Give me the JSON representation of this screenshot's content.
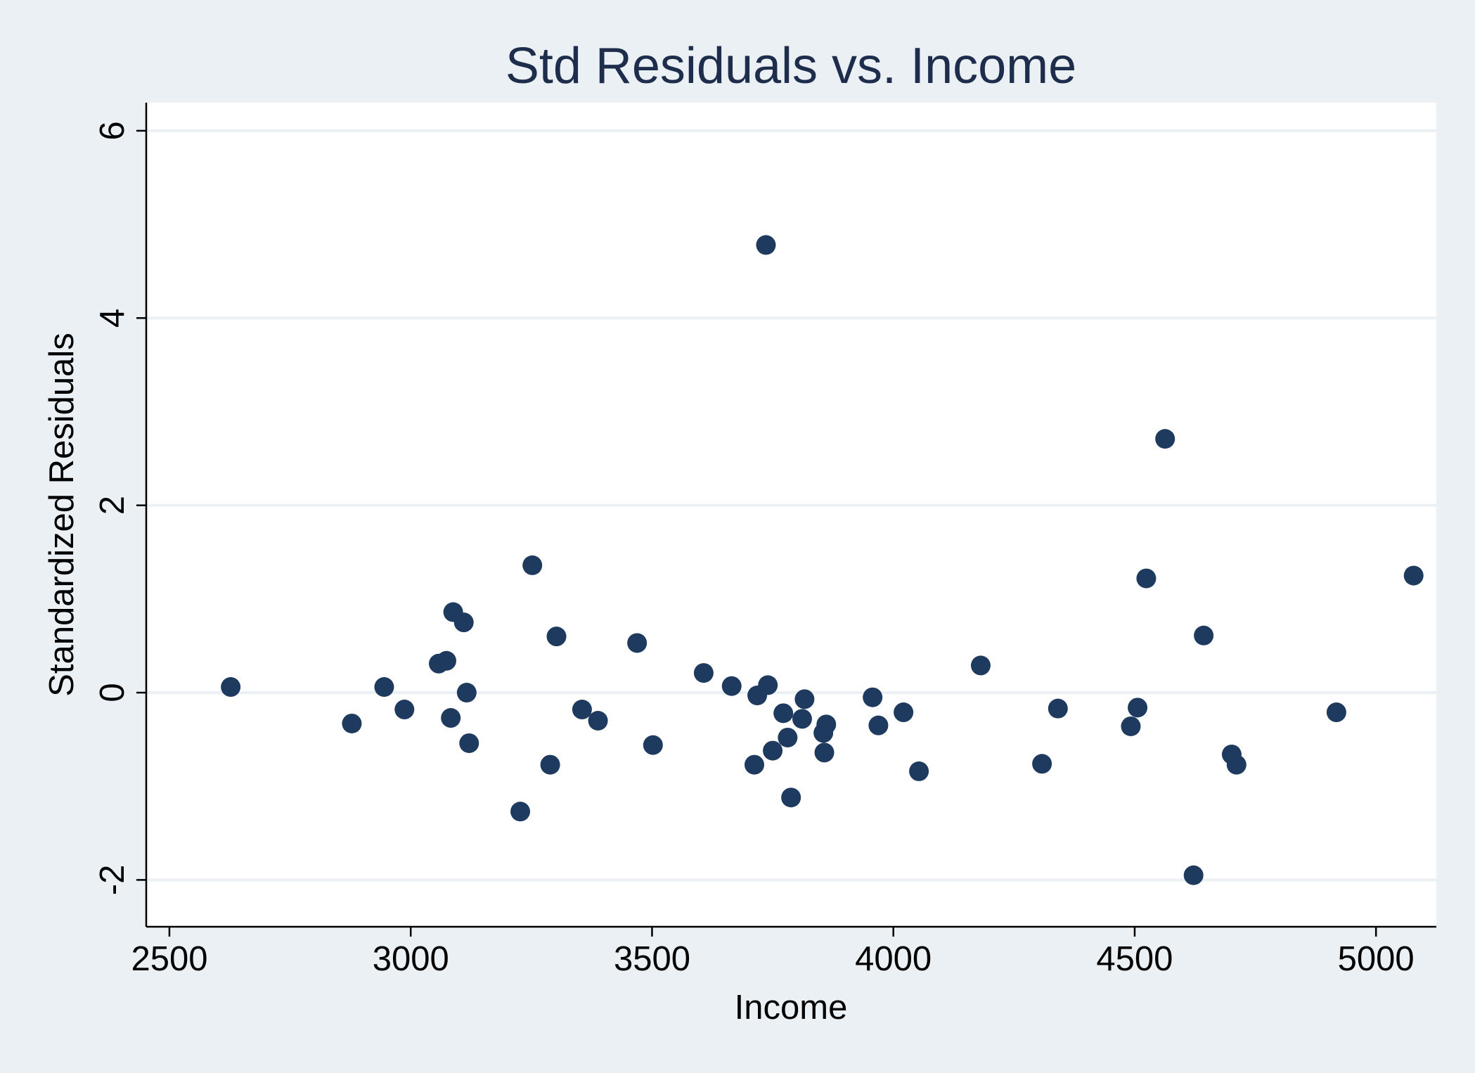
{
  "chart_data": {
    "type": "scatter",
    "title": "Std Residuals vs. Income",
    "xlabel": "Income",
    "ylabel": "Standardized Residuals",
    "xlim": [
      2452,
      5125
    ],
    "ylim": [
      -2.5,
      6.3
    ],
    "xticks": [
      2500,
      3000,
      3500,
      4000,
      4500,
      5000
    ],
    "yticks": [
      -2,
      0,
      2,
      4,
      6
    ],
    "xtick_labels": [
      "2500",
      "3000",
      "3500",
      "4000",
      "4500",
      "5000"
    ],
    "ytick_labels": [
      "-2",
      "0",
      "2",
      "4",
      "6"
    ],
    "grid": "horizontal",
    "legend": "none",
    "marker_color": "#1f3a5f",
    "background": "#eaf0f3",
    "plot_background": "#ffffff",
    "points": [
      {
        "x": 2627,
        "y": 0.06
      },
      {
        "x": 2878,
        "y": -0.33
      },
      {
        "x": 2945,
        "y": 0.06
      },
      {
        "x": 2987,
        "y": -0.18
      },
      {
        "x": 3058,
        "y": 0.31
      },
      {
        "x": 3074,
        "y": 0.34
      },
      {
        "x": 3083,
        "y": -0.27
      },
      {
        "x": 3088,
        "y": 0.86
      },
      {
        "x": 3110,
        "y": 0.75
      },
      {
        "x": 3116,
        "y": 0.0
      },
      {
        "x": 3121,
        "y": -0.54
      },
      {
        "x": 3227,
        "y": -1.27
      },
      {
        "x": 3252,
        "y": 1.36
      },
      {
        "x": 3289,
        "y": -0.77
      },
      {
        "x": 3302,
        "y": 0.6
      },
      {
        "x": 3355,
        "y": -0.18
      },
      {
        "x": 3388,
        "y": -0.3
      },
      {
        "x": 3469,
        "y": 0.53
      },
      {
        "x": 3502,
        "y": -0.56
      },
      {
        "x": 3607,
        "y": 0.21
      },
      {
        "x": 3665,
        "y": 0.07
      },
      {
        "x": 3712,
        "y": -0.77
      },
      {
        "x": 3718,
        "y": -0.03
      },
      {
        "x": 3736,
        "y": 4.78
      },
      {
        "x": 3740,
        "y": 0.08
      },
      {
        "x": 3750,
        "y": -0.62
      },
      {
        "x": 3772,
        "y": -0.22
      },
      {
        "x": 3781,
        "y": -0.48
      },
      {
        "x": 3788,
        "y": -1.12
      },
      {
        "x": 3811,
        "y": -0.28
      },
      {
        "x": 3816,
        "y": -0.07
      },
      {
        "x": 3855,
        "y": -0.43
      },
      {
        "x": 3857,
        "y": -0.64
      },
      {
        "x": 3861,
        "y": -0.34
      },
      {
        "x": 3957,
        "y": -0.05
      },
      {
        "x": 3969,
        "y": -0.35
      },
      {
        "x": 4021,
        "y": -0.21
      },
      {
        "x": 4053,
        "y": -0.84
      },
      {
        "x": 4181,
        "y": 0.29
      },
      {
        "x": 4308,
        "y": -0.76
      },
      {
        "x": 4341,
        "y": -0.17
      },
      {
        "x": 4492,
        "y": -0.36
      },
      {
        "x": 4506,
        "y": -0.16
      },
      {
        "x": 4524,
        "y": 1.22
      },
      {
        "x": 4563,
        "y": 2.71
      },
      {
        "x": 4622,
        "y": -1.95
      },
      {
        "x": 4643,
        "y": 0.61
      },
      {
        "x": 4701,
        "y": -0.66
      },
      {
        "x": 4711,
        "y": -0.77
      },
      {
        "x": 4918,
        "y": -0.21
      },
      {
        "x": 5078,
        "y": 1.25
      }
    ]
  }
}
